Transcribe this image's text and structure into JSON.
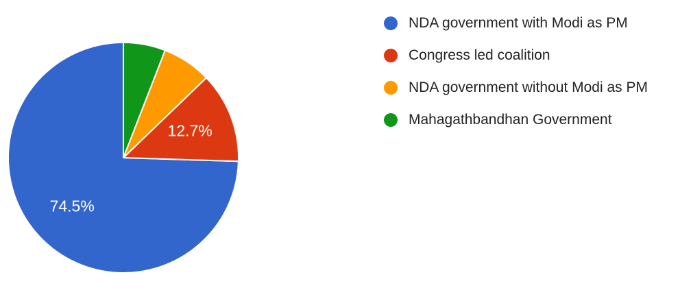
{
  "chart_data": {
    "type": "pie",
    "title": "",
    "legend_position": "right",
    "slices": [
      {
        "name": "NDA government with Modi as PM",
        "value": 74.5,
        "label": "74.5%",
        "color": "#3366cc"
      },
      {
        "name": "Congress led coalition",
        "value": 12.7,
        "label": "12.7%",
        "color": "#dc3912"
      },
      {
        "name": "NDA government without Modi as PM",
        "value": 6.9,
        "label": "",
        "color": "#ff9900"
      },
      {
        "name": "Mahagathbandhan Government",
        "value": 5.9,
        "label": "",
        "color": "#109618"
      }
    ]
  }
}
